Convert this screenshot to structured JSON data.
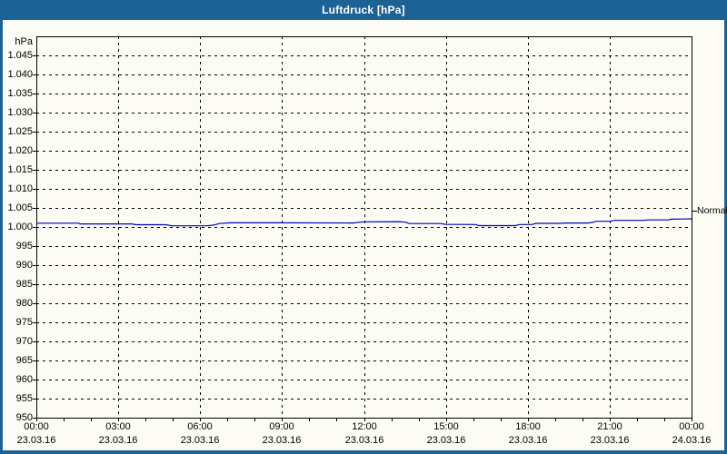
{
  "window": {
    "title": "Luftdruck [hPa]"
  },
  "colors": {
    "chrome_blue": "#1d6295",
    "panel_background": "#fcfcf5",
    "axis_black": "#000000",
    "series_blue": "#0000c0",
    "title_text": "#ffffff"
  },
  "chart_data": {
    "type": "line",
    "title": "Luftdruck [hPa]",
    "unit_label": "hPa",
    "ylabel": "hPa",
    "xlabel": "",
    "ylim": [
      950,
      1050
    ],
    "xlim_hours": [
      0,
      24
    ],
    "grid": "dashed",
    "legend_position": "none",
    "y_ticks": [
      {
        "value": 1045,
        "label": "1.045"
      },
      {
        "value": 1040,
        "label": "1.040"
      },
      {
        "value": 1035,
        "label": "1.035"
      },
      {
        "value": 1030,
        "label": "1.030"
      },
      {
        "value": 1025,
        "label": "1.025"
      },
      {
        "value": 1020,
        "label": "1.020"
      },
      {
        "value": 1015,
        "label": "1.015"
      },
      {
        "value": 1010,
        "label": "1.010"
      },
      {
        "value": 1005,
        "label": "1.005"
      },
      {
        "value": 1000,
        "label": "1.000"
      },
      {
        "value": 995,
        "label": "995"
      },
      {
        "value": 990,
        "label": "990"
      },
      {
        "value": 985,
        "label": "985"
      },
      {
        "value": 980,
        "label": "980"
      },
      {
        "value": 975,
        "label": "975"
      },
      {
        "value": 970,
        "label": "970"
      },
      {
        "value": 965,
        "label": "965"
      },
      {
        "value": 960,
        "label": "960"
      },
      {
        "value": 955,
        "label": "955"
      },
      {
        "value": 950,
        "label": "950"
      }
    ],
    "x_ticks": [
      {
        "hour": 0,
        "time": "00:00",
        "date": "23.03.16"
      },
      {
        "hour": 3,
        "time": "03:00",
        "date": "23.03.16"
      },
      {
        "hour": 6,
        "time": "06:00",
        "date": "23.03.16"
      },
      {
        "hour": 9,
        "time": "09:00",
        "date": "23.03.16"
      },
      {
        "hour": 12,
        "time": "12:00",
        "date": "23.03.16"
      },
      {
        "hour": 15,
        "time": "15:00",
        "date": "23.03.16"
      },
      {
        "hour": 18,
        "time": "18:00",
        "date": "23.03.16"
      },
      {
        "hour": 21,
        "time": "21:00",
        "date": "23.03.16"
      },
      {
        "hour": 24,
        "time": "00:00",
        "date": "24.03.16"
      }
    ],
    "minor_x_tick_every_hours": 1,
    "series": [
      {
        "name": "Luftdruck",
        "color": "#0000c0",
        "points": [
          [
            0,
            1001.0
          ],
          [
            1.55,
            1001.0
          ],
          [
            1.6,
            1000.8
          ],
          [
            3.5,
            1000.8
          ],
          [
            3.65,
            1000.6
          ],
          [
            4.75,
            1000.6
          ],
          [
            4.95,
            1000.3
          ],
          [
            6.25,
            1000.3
          ],
          [
            6.5,
            1000.5
          ],
          [
            6.7,
            1000.9
          ],
          [
            7.1,
            1001.1
          ],
          [
            9.0,
            1001.1
          ],
          [
            11.6,
            1001.05
          ],
          [
            11.8,
            1001.25
          ],
          [
            12.0,
            1001.35
          ],
          [
            13.3,
            1001.4
          ],
          [
            13.55,
            1001.25
          ],
          [
            13.65,
            1000.9
          ],
          [
            14.8,
            1000.9
          ],
          [
            15.0,
            1000.7
          ],
          [
            16.1,
            1000.65
          ],
          [
            16.2,
            1000.35
          ],
          [
            17.55,
            1000.35
          ],
          [
            17.7,
            1000.65
          ],
          [
            18.15,
            1000.65
          ],
          [
            18.3,
            1000.95
          ],
          [
            19.2,
            1000.95
          ],
          [
            19.4,
            1001.05
          ],
          [
            20.2,
            1001.05
          ],
          [
            20.4,
            1001.25
          ],
          [
            20.5,
            1001.5
          ],
          [
            21.05,
            1001.5
          ],
          [
            21.15,
            1001.75
          ],
          [
            22.25,
            1001.75
          ],
          [
            22.4,
            1001.85
          ],
          [
            23.15,
            1001.85
          ],
          [
            23.25,
            1002.05
          ],
          [
            23.7,
            1002.1
          ],
          [
            24,
            1002.15
          ]
        ]
      }
    ],
    "annotations": [
      {
        "label": "Normal",
        "value": 1004.2
      }
    ]
  }
}
